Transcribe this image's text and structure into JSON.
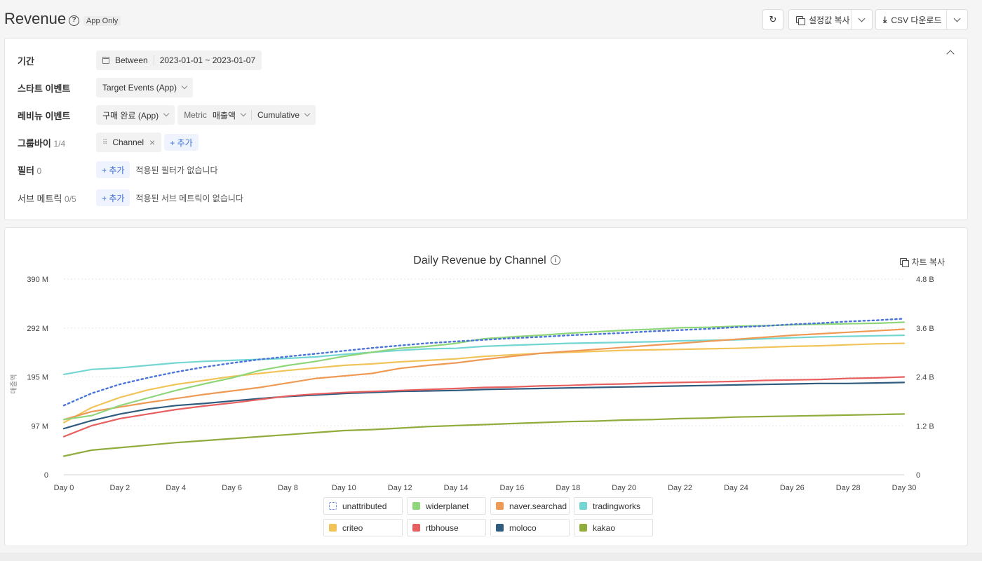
{
  "header": {
    "title": "Revenue",
    "badge": "App Only",
    "copy_settings_label": "설정값 복사",
    "csv_label": "CSV 다운로드"
  },
  "filters": {
    "period": {
      "label": "기간",
      "mode": "Between",
      "range": "2023-01-01 ~ 2023-01-07"
    },
    "start_event": {
      "label": "스타트 이벤트",
      "value": "Target Events (App)"
    },
    "revenue_event": {
      "label": "레비뉴 이벤트",
      "value": "구매 완료 (App)",
      "metric_label": "Metric",
      "metric_value": "매출액",
      "agg_value": "Cumulative"
    },
    "groupby": {
      "label": "그룹바이",
      "count": "1/4",
      "chip": "Channel",
      "add_label": "+ 추가"
    },
    "filter": {
      "label": "필터",
      "count": "0",
      "add_label": "+ 추가",
      "empty_text": "적용된 필터가 없습니다"
    },
    "sub_metric": {
      "label": "서브 메트릭",
      "count": "0/5",
      "add_label": "+ 추가",
      "empty_text": "적용된 서브 메트릭이 없습니다"
    }
  },
  "chart_panel": {
    "copy_label": "차트 복사"
  },
  "colors": {
    "unattributed": "#4a74d8",
    "widerplanet": "#8fd67a",
    "naver.searchad": "#ee9a55",
    "tradingworks": "#74d6d2",
    "criteo": "#f1c45a",
    "rtbhouse": "#e85f5f",
    "moloco": "#2f5b7e",
    "kakao": "#8fac3c"
  },
  "chart_data": {
    "type": "line",
    "title": "Daily Revenue by Channel",
    "ylabel": "매출액",
    "ylim": [
      0,
      390
    ],
    "y_ticks": [
      "0",
      "97 M",
      "195 M",
      "292 M",
      "390 M"
    ],
    "y2_ticks": [
      "0",
      "1.2 B",
      "2.4 B",
      "3.6 B",
      "4.8 B"
    ],
    "y2lim": [
      0,
      4800
    ],
    "grid": true,
    "legend_position": "bottom",
    "x": [
      0,
      1,
      2,
      3,
      4,
      5,
      6,
      7,
      8,
      9,
      10,
      11,
      12,
      13,
      14,
      15,
      16,
      17,
      18,
      19,
      20,
      21,
      22,
      23,
      24,
      25,
      26,
      27,
      28,
      29,
      30
    ],
    "x_tick_labels": [
      "Day 0",
      "Day 2",
      "Day 4",
      "Day 6",
      "Day 8",
      "Day 10",
      "Day 12",
      "Day 14",
      "Day 16",
      "Day 18",
      "Day 20",
      "Day 22",
      "Day 24",
      "Day 26",
      "Day 28",
      "Day 30"
    ],
    "series": [
      {
        "name": "unattributed",
        "axis": "right",
        "dashed": true,
        "values": [
          1700,
          2000,
          2220,
          2380,
          2520,
          2640,
          2740,
          2830,
          2900,
          2970,
          3040,
          3110,
          3170,
          3230,
          3270,
          3310,
          3350,
          3380,
          3420,
          3450,
          3480,
          3520,
          3550,
          3580,
          3620,
          3650,
          3690,
          3720,
          3760,
          3790,
          3830
        ]
      },
      {
        "name": "widerplanet",
        "values": [
          110,
          118,
          138,
          153,
          168,
          181,
          193,
          208,
          218,
          226,
          236,
          244,
          252,
          256,
          262,
          271,
          275,
          278,
          282,
          285,
          288,
          290,
          293,
          294,
          296,
          297,
          299,
          300,
          301,
          302,
          304
        ]
      },
      {
        "name": "naver.searchad",
        "values": [
          110,
          126,
          135,
          144,
          152,
          160,
          167,
          174,
          183,
          192,
          197,
          202,
          212,
          218,
          223,
          230,
          236,
          242,
          246,
          250,
          254,
          258,
          262,
          266,
          270,
          274,
          278,
          281,
          284,
          287,
          290
        ]
      },
      {
        "name": "tradingworks",
        "values": [
          200,
          210,
          213,
          218,
          223,
          226,
          228,
          230,
          232,
          235,
          240,
          244,
          248,
          251,
          252,
          256,
          258,
          260,
          262,
          263,
          264,
          265,
          267,
          268,
          269,
          271,
          273,
          275,
          276,
          277,
          278
        ]
      },
      {
        "name": "criteo",
        "values": [
          104,
          134,
          154,
          169,
          180,
          188,
          196,
          202,
          208,
          213,
          218,
          221,
          225,
          228,
          231,
          236,
          239,
          242,
          244,
          246,
          248,
          249,
          250,
          251,
          252,
          254,
          256,
          257,
          259,
          261,
          262
        ]
      },
      {
        "name": "rtbhouse",
        "values": [
          76,
          98,
          112,
          121,
          130,
          137,
          143,
          150,
          157,
          161,
          164,
          166,
          168,
          170,
          172,
          174,
          175,
          177,
          178,
          180,
          181,
          183,
          184,
          185,
          186,
          188,
          189,
          190,
          192,
          193,
          195
        ]
      },
      {
        "name": "moloco",
        "values": [
          92,
          108,
          121,
          131,
          138,
          142,
          147,
          152,
          156,
          159,
          162,
          164,
          166,
          167,
          168,
          170,
          171,
          172,
          173,
          174,
          175,
          176,
          177,
          178,
          179,
          180,
          181,
          182,
          182,
          183,
          184
        ]
      },
      {
        "name": "kakao",
        "values": [
          37,
          49,
          54,
          59,
          64,
          68,
          72,
          76,
          80,
          84,
          88,
          90,
          93,
          96,
          98,
          100,
          102,
          104,
          106,
          107,
          109,
          110,
          112,
          113,
          115,
          116,
          117,
          118,
          119,
          120,
          121
        ]
      }
    ]
  }
}
